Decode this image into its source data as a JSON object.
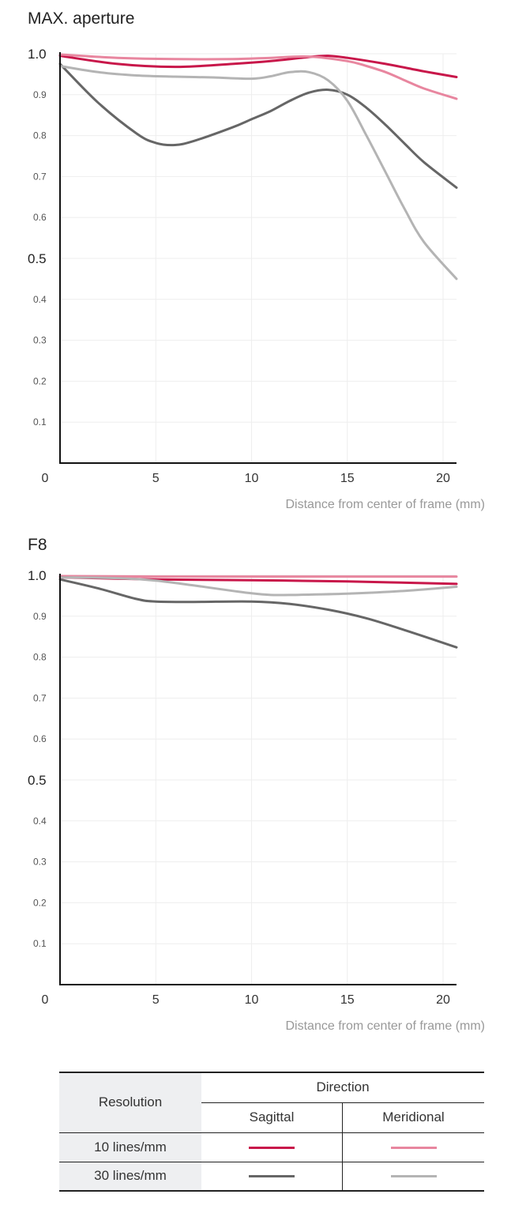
{
  "charts": [
    {
      "title": "MAX. aperture",
      "xlabel": "Distance from center of frame (mm)"
    },
    {
      "title": "F8",
      "xlabel": "Distance from center of frame (mm)"
    }
  ],
  "legend": {
    "resolution_header": "Resolution",
    "direction_header": "Direction",
    "sagittal": "Sagittal",
    "meridional": "Meridional",
    "rows": [
      {
        "label": "10 lines/mm",
        "sagittal_color": "#c8174a",
        "meridional_color": "#e8869f"
      },
      {
        "label": "30 lines/mm",
        "sagittal_color": "#666666",
        "meridional_color": "#b4b4b4"
      }
    ]
  },
  "chart_data": [
    {
      "type": "line",
      "title": "MAX. aperture",
      "xlabel": "Distance from center of frame (mm)",
      "ylabel": "",
      "xlim": [
        0,
        20.7
      ],
      "ylim": [
        0,
        1.0
      ],
      "x_ticks": [
        0,
        5,
        10,
        15,
        20
      ],
      "y_ticks": [
        "0.1",
        "0.2",
        "0.3",
        "0.4",
        "0.5",
        "0.6",
        "0.7",
        "0.8",
        "0.9",
        "1.0"
      ],
      "y_ticks_large": [
        "0.5",
        "1.0"
      ],
      "x_zero_label": "0",
      "grid": true,
      "series": [
        {
          "key": "s10",
          "color": "#c8174a",
          "x": [
            0,
            3,
            6,
            9,
            11,
            13,
            14,
            15,
            17,
            19,
            20.7
          ],
          "y": [
            0.995,
            0.975,
            0.968,
            0.975,
            0.982,
            0.992,
            0.995,
            0.99,
            0.975,
            0.957,
            0.943
          ]
        },
        {
          "key": "m10",
          "color": "#e8869f",
          "x": [
            0,
            3,
            6,
            9,
            11,
            13,
            15,
            16,
            17,
            18,
            19,
            20.7
          ],
          "y": [
            0.998,
            0.99,
            0.987,
            0.987,
            0.99,
            0.993,
            0.982,
            0.97,
            0.955,
            0.935,
            0.915,
            0.89
          ]
        },
        {
          "key": "s30",
          "color": "#666666",
          "x": [
            0,
            2,
            4,
            5,
            6,
            7,
            9,
            10,
            11,
            12,
            13,
            14,
            15,
            16,
            17,
            18,
            19,
            20.7
          ],
          "y": [
            0.975,
            0.88,
            0.805,
            0.782,
            0.777,
            0.787,
            0.82,
            0.84,
            0.86,
            0.885,
            0.905,
            0.912,
            0.9,
            0.868,
            0.826,
            0.78,
            0.735,
            0.673
          ]
        },
        {
          "key": "m30",
          "color": "#b4b4b4",
          "x": [
            0,
            2,
            4,
            6,
            8,
            10,
            11,
            12,
            13,
            14,
            15,
            16,
            17,
            18,
            19,
            20.7
          ],
          "y": [
            0.97,
            0.955,
            0.947,
            0.944,
            0.942,
            0.939,
            0.945,
            0.955,
            0.955,
            0.935,
            0.885,
            0.8,
            0.71,
            0.62,
            0.54,
            0.45
          ]
        }
      ]
    },
    {
      "type": "line",
      "title": "F8",
      "xlabel": "Distance from center of frame (mm)",
      "ylabel": "",
      "xlim": [
        0,
        20.7
      ],
      "ylim": [
        0,
        1.0
      ],
      "x_ticks": [
        0,
        5,
        10,
        15,
        20
      ],
      "y_ticks": [
        "0.1",
        "0.2",
        "0.3",
        "0.4",
        "0.5",
        "0.6",
        "0.7",
        "0.8",
        "0.9",
        "1.0"
      ],
      "y_ticks_large": [
        "0.5",
        "1.0"
      ],
      "x_zero_label": "0",
      "grid": true,
      "series": [
        {
          "key": "m10",
          "color": "#e8869f",
          "x": [
            0,
            5,
            10,
            15,
            20.7
          ],
          "y": [
            0.998,
            0.997,
            0.997,
            0.997,
            0.997
          ]
        },
        {
          "key": "s10",
          "color": "#c8174a",
          "x": [
            0,
            5,
            10,
            15,
            20.7
          ],
          "y": [
            0.995,
            0.99,
            0.988,
            0.985,
            0.979
          ]
        },
        {
          "key": "m30",
          "color": "#b4b4b4",
          "x": [
            0,
            3,
            5,
            7,
            9,
            10,
            11,
            12,
            15,
            18,
            20.7
          ],
          "y": [
            0.995,
            0.993,
            0.987,
            0.975,
            0.962,
            0.956,
            0.952,
            0.952,
            0.955,
            0.962,
            0.972
          ]
        },
        {
          "key": "s30",
          "color": "#666666",
          "x": [
            0,
            2,
            4,
            5,
            7,
            10,
            12,
            14,
            16,
            18,
            20.7
          ],
          "y": [
            0.99,
            0.968,
            0.942,
            0.936,
            0.935,
            0.936,
            0.93,
            0.916,
            0.895,
            0.866,
            0.824
          ]
        }
      ]
    }
  ]
}
